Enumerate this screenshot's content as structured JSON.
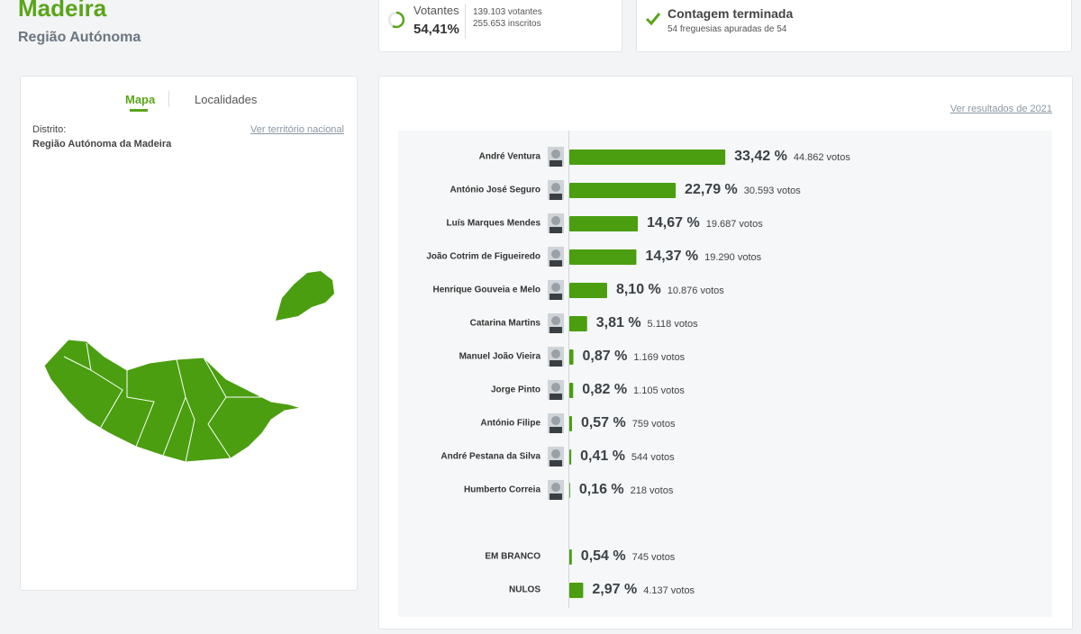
{
  "header": {
    "title": "Madeira",
    "subtitle": "Região Autónoma"
  },
  "turnout": {
    "label": "Votantes",
    "pct": "54,41%",
    "voters": "139.103 votantes",
    "registered": "255.653 inscritos"
  },
  "count": {
    "title": "Contagem terminada",
    "detail": "54 freguesias apuradas de 54"
  },
  "tabs": [
    "Mapa",
    "Localidades"
  ],
  "district": {
    "label": "Distrito:",
    "value": "Região Autónoma da Madeira",
    "link": "Ver território nacional"
  },
  "results": {
    "link": "Ver resultados de 2021",
    "candidates": [
      {
        "name": "André Ventura",
        "pct": {
          "value": 33.42,
          "label": "33,42 %"
        },
        "votes": "44.862 votos"
      },
      {
        "name": "António José Seguro",
        "pct": {
          "value": 22.79,
          "label": "22,79 %"
        },
        "votes": "30.593 votos"
      },
      {
        "name": "Luís Marques Mendes",
        "pct": {
          "value": 14.67,
          "label": "14,67 %"
        },
        "votes": "19.687 votos"
      },
      {
        "name": "João Cotrim de Figueiredo",
        "pct": {
          "value": 14.37,
          "label": "14,37 %"
        },
        "votes": "19.290 votos"
      },
      {
        "name": "Henrique Gouveia e Melo",
        "pct": {
          "value": 8.1,
          "label": "8,10 %"
        },
        "votes": "10.876 votos"
      },
      {
        "name": "Catarina Martins",
        "pct": {
          "value": 3.81,
          "label": "3,81 %"
        },
        "votes": "5.118 votos"
      },
      {
        "name": "Manuel João Vieira",
        "pct": {
          "value": 0.87,
          "label": "0,87 %"
        },
        "votes": "1.169 votos"
      },
      {
        "name": "Jorge Pinto",
        "pct": {
          "value": 0.82,
          "label": "0,82 %"
        },
        "votes": "1.105 votos"
      },
      {
        "name": "António Filipe",
        "pct": {
          "value": 0.57,
          "label": "0,57 %"
        },
        "votes": "759 votos"
      },
      {
        "name": "André Pestana da Silva",
        "pct": {
          "value": 0.41,
          "label": "0,41 %"
        },
        "votes": "544 votos"
      },
      {
        "name": "Humberto Correia",
        "pct": {
          "value": 0.16,
          "label": "0,16 %"
        },
        "votes": "218 votos"
      }
    ],
    "others": [
      {
        "name": "EM BRANCO",
        "pct": {
          "value": 0.54,
          "label": "0,54 %"
        },
        "votes": "745 votos"
      },
      {
        "name": "NULOS",
        "pct": {
          "value": 2.97,
          "label": "2,97 %"
        },
        "votes": "4.137 votos"
      }
    ]
  }
}
